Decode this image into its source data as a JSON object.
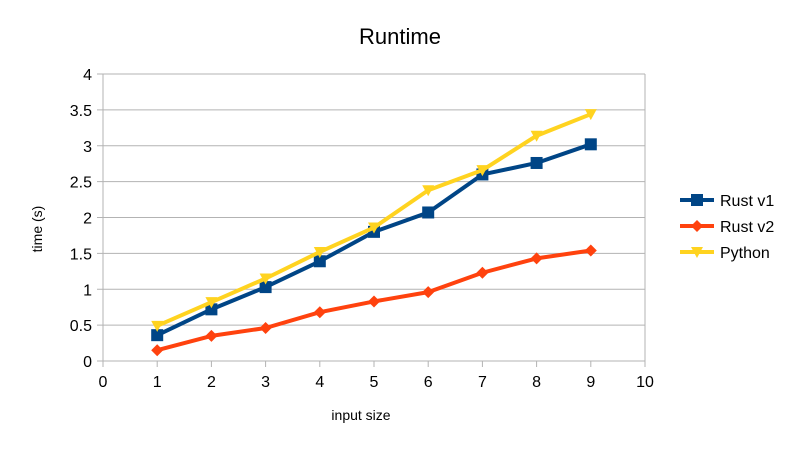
{
  "chart_data": {
    "type": "line",
    "title": "Runtime",
    "xlabel": "input size",
    "ylabel": "time (s)",
    "xlim": [
      0,
      10
    ],
    "ylim": [
      0,
      4
    ],
    "xticks": [
      0,
      1,
      2,
      3,
      4,
      5,
      6,
      7,
      8,
      9,
      10
    ],
    "yticks": [
      0,
      0.5,
      1,
      1.5,
      2,
      2.5,
      3,
      3.5,
      4
    ],
    "grid": "horizontal",
    "legend_position": "right",
    "x": [
      1,
      2,
      3,
      4,
      5,
      6,
      7,
      8,
      9
    ],
    "series": [
      {
        "name": "Rust v1",
        "color": "#004586",
        "marker": "square",
        "values": [
          0.36,
          0.72,
          1.03,
          1.39,
          1.8,
          2.07,
          2.6,
          2.76,
          3.02
        ]
      },
      {
        "name": "Rust v2",
        "color": "#ff420e",
        "marker": "diamond",
        "values": [
          0.15,
          0.35,
          0.46,
          0.68,
          0.83,
          0.96,
          1.23,
          1.43,
          1.54
        ]
      },
      {
        "name": "Python",
        "color": "#ffd320",
        "marker": "triangle-down",
        "values": [
          0.49,
          0.82,
          1.15,
          1.52,
          1.86,
          2.38,
          2.66,
          3.14,
          3.44
        ]
      }
    ]
  }
}
